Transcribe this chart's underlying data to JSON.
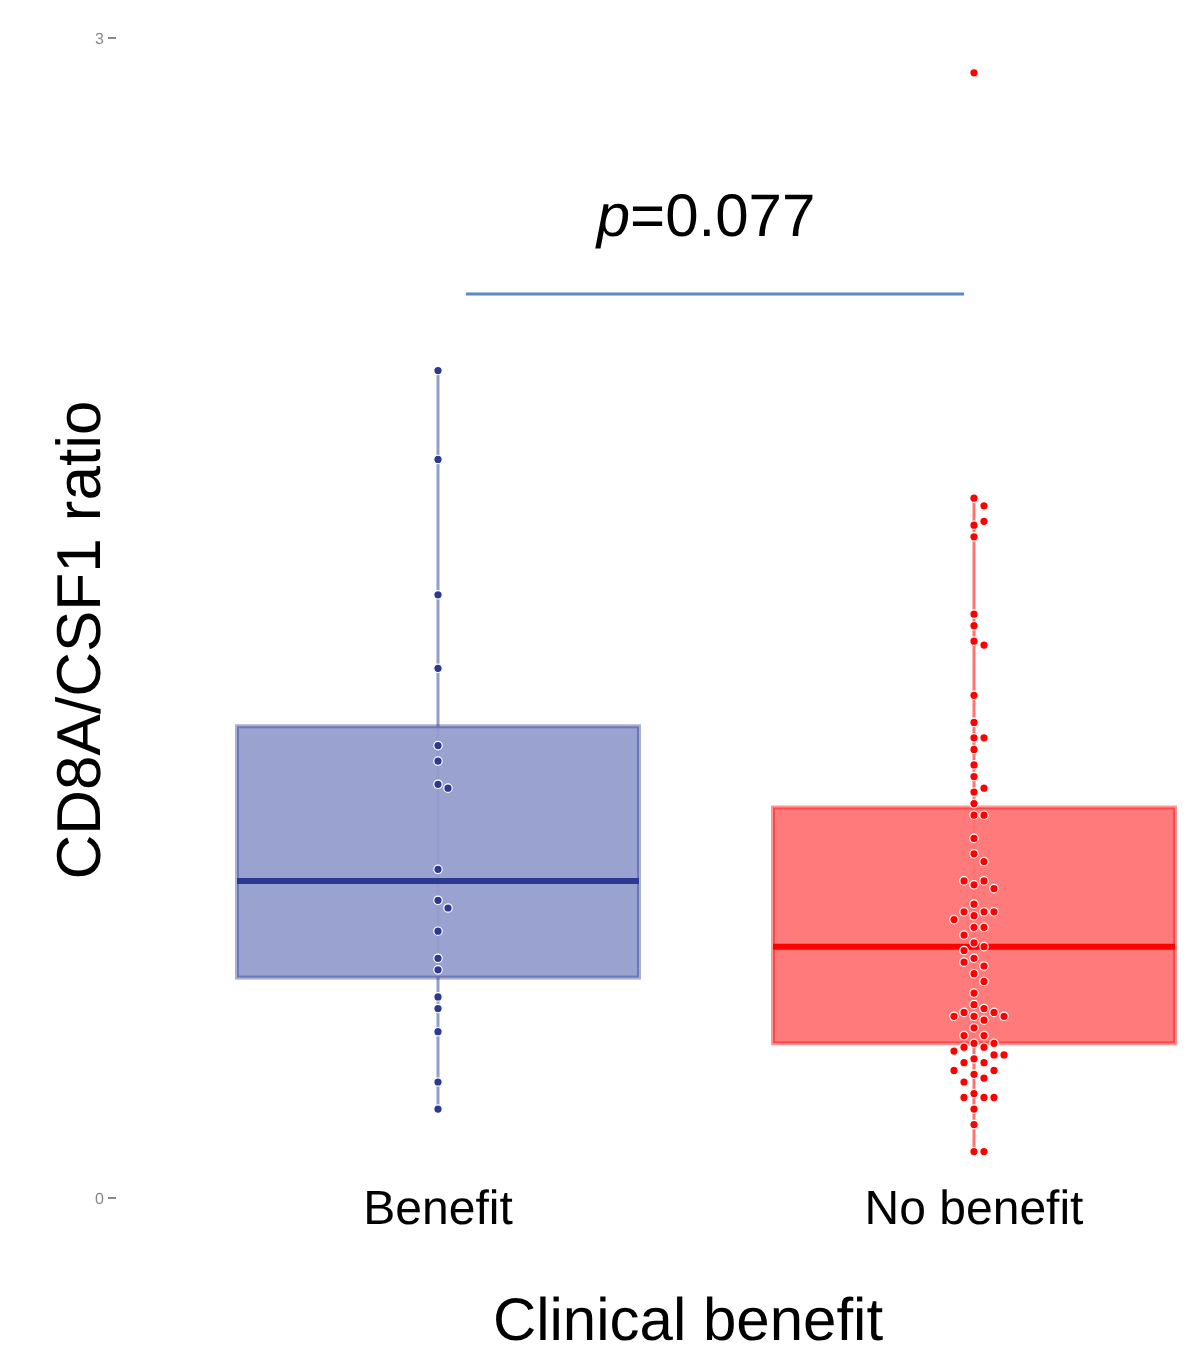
{
  "chart_data": {
    "type": "box",
    "xlabel": "Clinical benefit",
    "ylabel": "CD8A/CSF1 ratio",
    "annotations": [
      "p=0.077"
    ],
    "categories": [
      "Benefit",
      "No benefit"
    ],
    "ylim": [
      0,
      3
    ],
    "yticks": [
      0,
      3
    ],
    "colors": [
      "#959dcc",
      "#ff7373"
    ],
    "grid": false,
    "boxes": [
      {
        "low": 0.23,
        "q1": 0.57,
        "median": 0.82,
        "q3": 1.22,
        "high": 2.14
      },
      {
        "low": 0.11,
        "q1": 0.4,
        "median": 0.65,
        "q3": 1.01,
        "high": 1.8
      }
    ],
    "series": [
      {
        "type": "scatter",
        "color": "#2b3990",
        "marker": "circle",
        "x": [
          "Benefit",
          "Benefit",
          "Benefit",
          "Benefit",
          "Benefit",
          "Benefit",
          "Benefit",
          "Benefit",
          "Benefit",
          "Benefit",
          "Benefit",
          "Benefit",
          "Benefit",
          "Benefit",
          "Benefit",
          "Benefit",
          "Benefit",
          "Benefit",
          "Benefit"
        ],
        "values": [
          2.14,
          1.91,
          1.56,
          1.37,
          1.17,
          1.13,
          1.07,
          1.06,
          0.85,
          0.77,
          0.75,
          0.69,
          0.62,
          0.59,
          0.52,
          0.49,
          0.43,
          0.3,
          0.23
        ]
      },
      {
        "type": "scatter",
        "color": "#ff0000",
        "marker": "circle",
        "x": [
          "No benefit",
          "No benefit",
          "No benefit",
          "No benefit",
          "No benefit",
          "No benefit",
          "No benefit",
          "No benefit",
          "No benefit",
          "No benefit",
          "No benefit",
          "No benefit",
          "No benefit",
          "No benefit",
          "No benefit",
          "No benefit",
          "No benefit",
          "No benefit",
          "No benefit",
          "No benefit",
          "No benefit",
          "No benefit",
          "No benefit",
          "No benefit",
          "No benefit",
          "No benefit",
          "No benefit",
          "No benefit",
          "No benefit",
          "No benefit",
          "No benefit",
          "No benefit",
          "No benefit",
          "No benefit",
          "No benefit",
          "No benefit",
          "No benefit",
          "No benefit",
          "No benefit",
          "No benefit",
          "No benefit",
          "No benefit",
          "No benefit",
          "No benefit",
          "No benefit",
          "No benefit",
          "No benefit",
          "No benefit",
          "No benefit",
          "No benefit",
          "No benefit",
          "No benefit",
          "No benefit",
          "No benefit",
          "No benefit",
          "No benefit",
          "No benefit",
          "No benefit",
          "No benefit",
          "No benefit",
          "No benefit",
          "No benefit",
          "No benefit",
          "No benefit",
          "No benefit",
          "No benefit",
          "No benefit",
          "No benefit",
          "No benefit",
          "No benefit",
          "No benefit",
          "No benefit",
          "No benefit",
          "No benefit",
          "No benefit",
          "No benefit",
          "No benefit",
          "No benefit",
          "No benefit",
          "No benefit",
          "No benefit"
        ],
        "values": [
          2.91,
          1.81,
          1.79,
          1.74,
          1.75,
          1.71,
          1.51,
          1.48,
          1.44,
          1.43,
          1.3,
          1.23,
          1.19,
          1.19,
          1.16,
          1.12,
          1.09,
          1.05,
          1.06,
          1.02,
          0.99,
          0.99,
          0.93,
          0.89,
          0.87,
          0.81,
          0.82,
          0.82,
          0.8,
          0.76,
          0.74,
          0.74,
          0.74,
          0.73,
          0.72,
          0.7,
          0.7,
          0.68,
          0.66,
          0.65,
          0.64,
          0.62,
          0.6,
          0.61,
          0.58,
          0.56,
          0.53,
          0.5,
          0.49,
          0.47,
          0.48,
          0.48,
          0.47,
          0.47,
          0.44,
          0.46,
          0.42,
          0.42,
          0.4,
          0.39,
          0.4,
          0.39,
          0.38,
          0.36,
          0.37,
          0.37,
          0.35,
          0.35,
          0.32,
          0.33,
          0.33,
          0.31,
          0.3,
          0.27,
          0.26,
          0.26,
          0.26,
          0.23,
          0.19,
          0.12,
          0.12
        ]
      }
    ]
  }
}
